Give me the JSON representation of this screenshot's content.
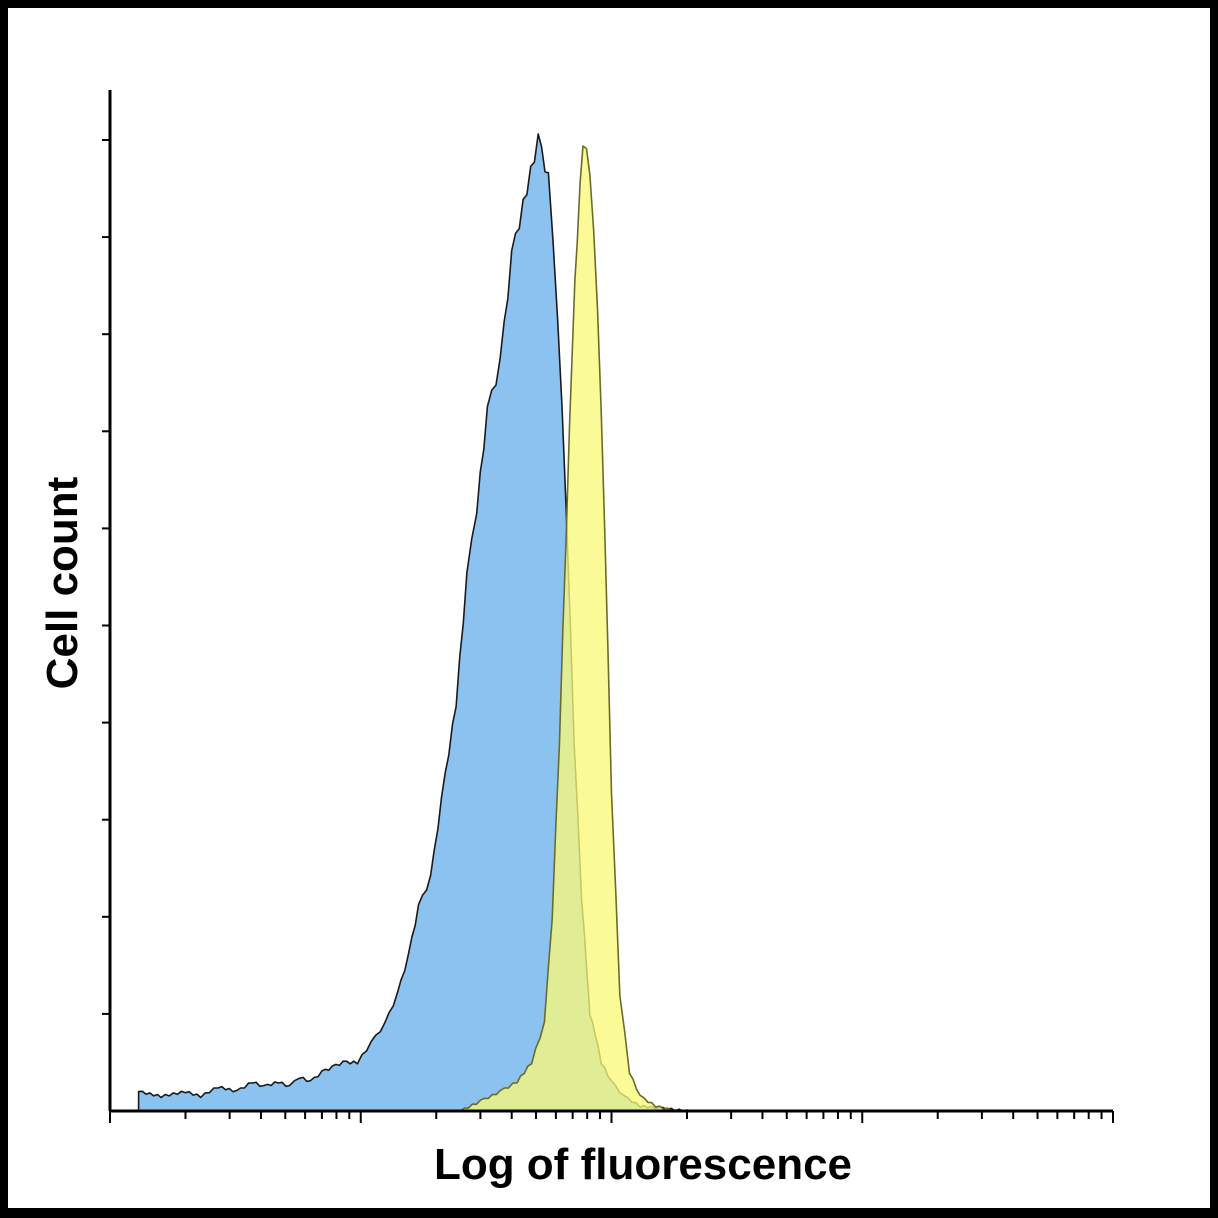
{
  "chart_data": {
    "type": "area",
    "title": "",
    "xlabel": "Log of fluorescence",
    "ylabel": "Cell count",
    "x_scale": "log",
    "xlim": [
      1,
      10000
    ],
    "ylim": [
      0,
      100
    ],
    "grid": false,
    "legend": "none",
    "tick_labels": false,
    "series": [
      {
        "color": "#8cc2ef",
        "outline": "#1a1a1a",
        "x": [
          1.3,
          1.6,
          2.0,
          2.3,
          2.7,
          3.2,
          3.7,
          4.1,
          4.7,
          5.2,
          5.7,
          6.3,
          7.0,
          7.7,
          8.5,
          9.7,
          11,
          12.5,
          14,
          15.5,
          17,
          19,
          21,
          24,
          26.5,
          29,
          32,
          36,
          40,
          46,
          51,
          56,
          61,
          66,
          71,
          76,
          80,
          82,
          86,
          91,
          100,
          112,
          130,
          155,
          200
        ],
        "values": [
          2,
          1.5,
          2,
          1.5,
          2.5,
          2,
          3,
          2.5,
          3,
          2.5,
          3.5,
          3,
          4,
          4.5,
          5,
          5,
          7,
          9,
          12,
          16,
          21,
          24,
          32,
          42,
          55,
          62,
          72,
          77,
          88,
          95,
          100,
          96,
          82,
          62,
          38,
          22,
          14,
          10,
          8,
          5,
          3,
          1.5,
          0.5,
          0.3,
          0
        ]
      },
      {
        "color": "#f8f87a",
        "outline": "#6b6b2a",
        "x": [
          25,
          30,
          36,
          42,
          48,
          54,
          58,
          62,
          66,
          70,
          73,
          77,
          82,
          88,
          94,
          100,
          108,
          118,
          130,
          150,
          180
        ],
        "values": [
          0,
          1,
          2,
          3,
          5,
          9,
          20,
          38,
          60,
          80,
          90,
          100,
          97,
          83,
          60,
          33,
          12,
          4,
          1.5,
          0.5,
          0
        ]
      }
    ]
  }
}
